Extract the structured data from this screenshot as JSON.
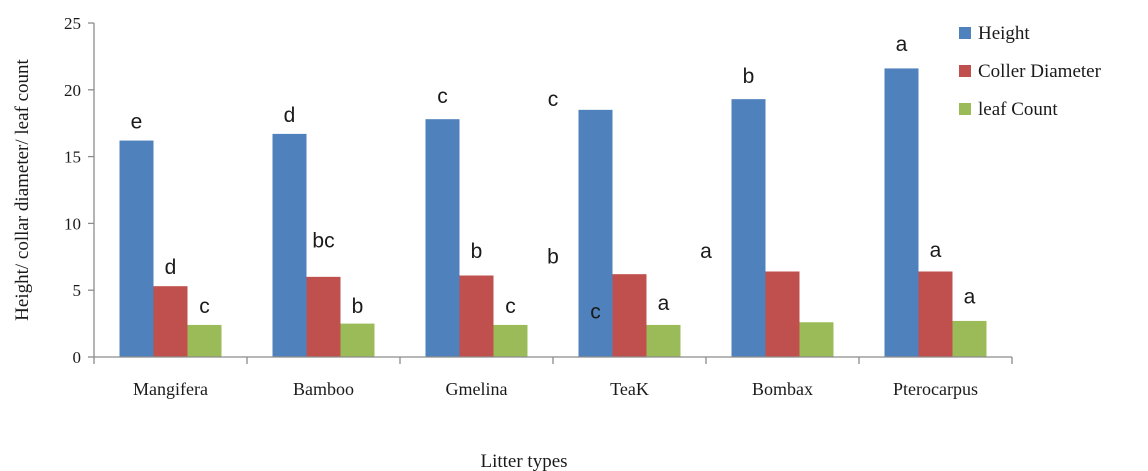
{
  "chart_data": {
    "type": "bar",
    "categories": [
      "Mangifera",
      "Bamboo",
      "Gmelina",
      "TeaK",
      "Bombax",
      "Pterocarpus"
    ],
    "series": [
      {
        "name": "Height",
        "color": "#4F81BD",
        "values": [
          16.2,
          16.7,
          17.8,
          18.5,
          19.3,
          21.6
        ]
      },
      {
        "name": "Coller Diameter",
        "color": "#C0504D",
        "values": [
          5.3,
          6.0,
          6.1,
          6.2,
          6.4,
          6.4
        ]
      },
      {
        "name": "leaf Count",
        "color": "#9BBB59",
        "values": [
          2.4,
          2.5,
          2.4,
          2.4,
          2.6,
          2.7
        ]
      }
    ],
    "ylim": [
      0,
      25
    ],
    "yticks": [
      "0",
      "5",
      "10",
      "15",
      "20",
      "25"
    ],
    "xlabel": "Litter types",
    "ylabel": "Height/ collar diameter/ leaf count",
    "grid": false,
    "legend": "top-right",
    "annotations": [
      {
        "text": "e",
        "category": "Mangifera",
        "series": "Height",
        "y": 17.1
      },
      {
        "text": "d",
        "category": "Mangifera",
        "series": "Coller Diameter",
        "y": 6.2
      },
      {
        "text": "c",
        "category": "Mangifera",
        "series": "leaf Count",
        "y": 3.3
      },
      {
        "text": "d",
        "category": "Bamboo",
        "series": "Height",
        "y": 17.6
      },
      {
        "text": "bc",
        "category": "Bamboo",
        "series": "Coller Diameter",
        "y": 8.2
      },
      {
        "text": "b",
        "category": "Bamboo",
        "series": "leaf Count",
        "y": 3.3
      },
      {
        "text": "c",
        "category": "Gmelina",
        "series": "Height",
        "y": 19.0
      },
      {
        "text": "b",
        "category": "Gmelina",
        "series": "Coller Diameter",
        "y": 7.4
      },
      {
        "text": "c",
        "category": "Gmelina",
        "series": "leaf Count",
        "y": 3.3
      },
      {
        "text": "c",
        "category": "Gmelina",
        "gap": true,
        "y": 18.8
      },
      {
        "text": "b",
        "category": "Gmelina",
        "gap": true,
        "y": 7.0
      },
      {
        "text": "c",
        "category": "TeaK",
        "series": "Height",
        "y": 2.9
      },
      {
        "text": "a",
        "category": "TeaK",
        "series": "leaf Count",
        "y": 3.5
      },
      {
        "text": "a",
        "category": "TeaK",
        "gap": true,
        "y": 7.4
      },
      {
        "text": "b",
        "category": "Bombax",
        "series": "Height",
        "y": 20.5
      },
      {
        "text": "a",
        "category": "Pterocarpus",
        "series": "Height",
        "y": 22.9
      },
      {
        "text": "a",
        "category": "Pterocarpus",
        "series": "Coller Diameter",
        "y": 7.5
      },
      {
        "text": "a",
        "category": "Pterocarpus",
        "series": "leaf Count",
        "y": 4.0
      }
    ]
  }
}
